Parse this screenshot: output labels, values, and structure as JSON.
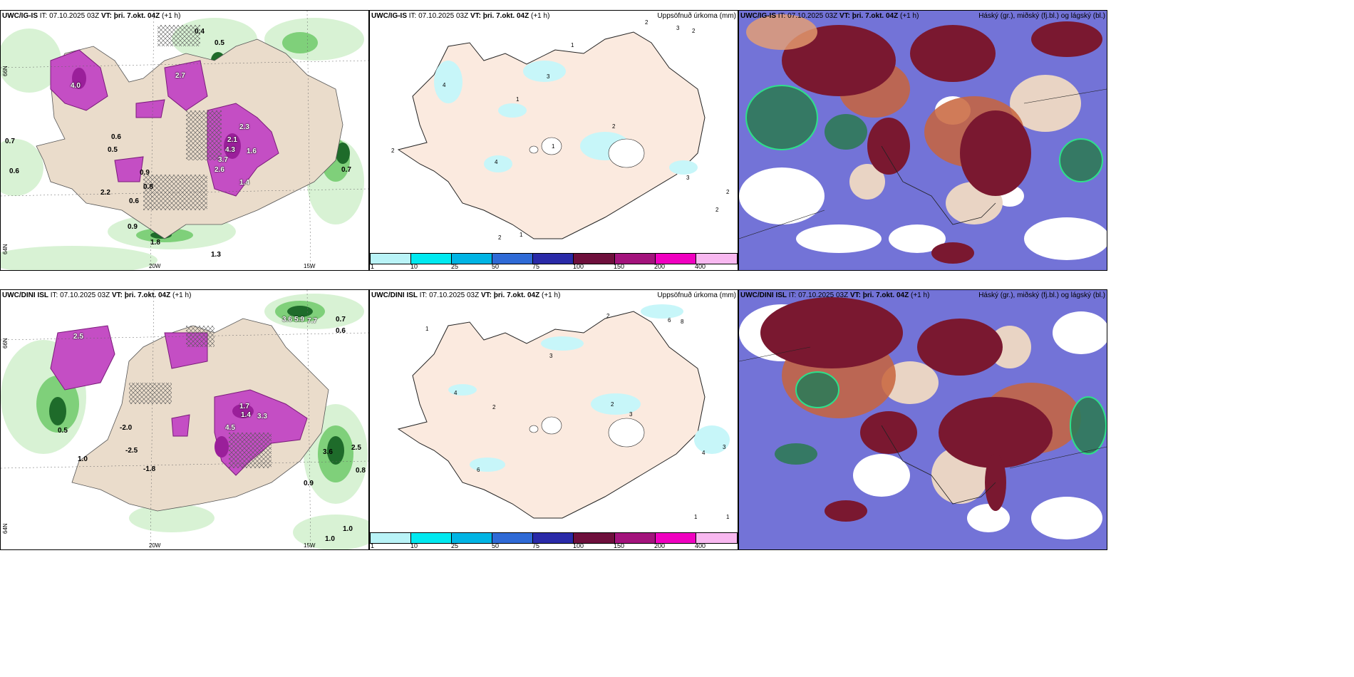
{
  "panels": {
    "top_left": {
      "model": "UWC/IG-IS",
      "it": "IT: 07.10.2025 03Z",
      "vt_label": "VT:",
      "vt": "þri. 7.okt. 04Z",
      "lead": "(+1 h)"
    },
    "top_mid": {
      "model": "UWC/IG-IS",
      "it": "IT: 07.10.2025 03Z",
      "vt_label": "VT:",
      "vt": "þri. 7.okt. 04Z",
      "lead": "(+1 h)",
      "right_title": "Uppsöfnuð úrkoma (mm)"
    },
    "top_right": {
      "model": "UWC/IG-IS",
      "it": "IT: 07.10.2025 03Z",
      "vt_label": "VT:",
      "vt": "þri. 7.okt. 04Z",
      "lead": "(+1 h)",
      "right_title": "Háský (gr.), miðský (fj.bl.) og lágský (bl.)"
    },
    "bot_left": {
      "model": "UWC/DINI ISL",
      "it": "IT: 07.10.2025 03Z",
      "vt_label": "VT:",
      "vt": "þri. 7.okt. 04Z",
      "lead": "(+1 h)"
    },
    "bot_mid": {
      "model": "UWC/DINI ISL",
      "it": "IT: 07.10.2025 03Z",
      "vt_label": "VT:",
      "vt": "þri. 7.okt. 04Z",
      "lead": "(+1 h)",
      "right_title": "Uppsöfnuð úrkoma (mm)"
    },
    "bot_right": {
      "model": "UWC/DINI ISL",
      "it": "IT: 07.10.2025 03Z",
      "vt_label": "VT:",
      "vt": "þri. 7.okt. 04Z",
      "lead": "(+1 h)",
      "right_title": "Háský (gr.), miðský (fj.bl.) og lágský (bl.)"
    }
  },
  "axes": {
    "lon_20": "20W",
    "lon_15": "15W",
    "lat_65": "65N",
    "lat_64": "64N",
    "lat_66": "66N"
  },
  "colorbar": {
    "labels": [
      "1",
      "10",
      "25",
      "50",
      "75",
      "100",
      "150",
      "200",
      "400"
    ],
    "colors": [
      "#b9f3f7",
      "#00e9f0",
      "#00b4e4",
      "#2f6ad6",
      "#2a2aa8",
      "#6e0f3c",
      "#a3137c",
      "#f000c0",
      "#f8b8f0"
    ]
  },
  "values": {
    "tl": [
      "4.0",
      "2.7",
      "2.3",
      "2.1",
      "1.6",
      "3.7",
      "4.3",
      "2.6",
      "1.4",
      "0.5",
      "0.6",
      "0.7",
      "0.9",
      "1.3",
      "0.7",
      "0.6",
      "0.8",
      "0.6",
      "0.9",
      "2.2",
      "0.4",
      "0.5",
      "1.8"
    ],
    "tm": [
      "2",
      "3",
      "2",
      "1",
      "4",
      "3",
      "1",
      "2",
      "4",
      "1",
      "2",
      "3",
      "2",
      "2",
      "1",
      "2"
    ],
    "bl": [
      "3.6",
      "5.9",
      "7.7",
      "1.7",
      "1.4",
      "3.3",
      "4.5",
      "2.5",
      "-2.0",
      "-2.5",
      "-1.8",
      "0.7",
      "0.6",
      "0.5",
      "1.0",
      "0.9",
      "3.6",
      "0.8",
      "2.5",
      "1.0",
      "1.0"
    ],
    "bm": [
      "2",
      "6",
      "8",
      "1",
      "3",
      "2",
      "3",
      "4",
      "3",
      "6",
      "1",
      "1",
      "4",
      "2"
    ]
  }
}
